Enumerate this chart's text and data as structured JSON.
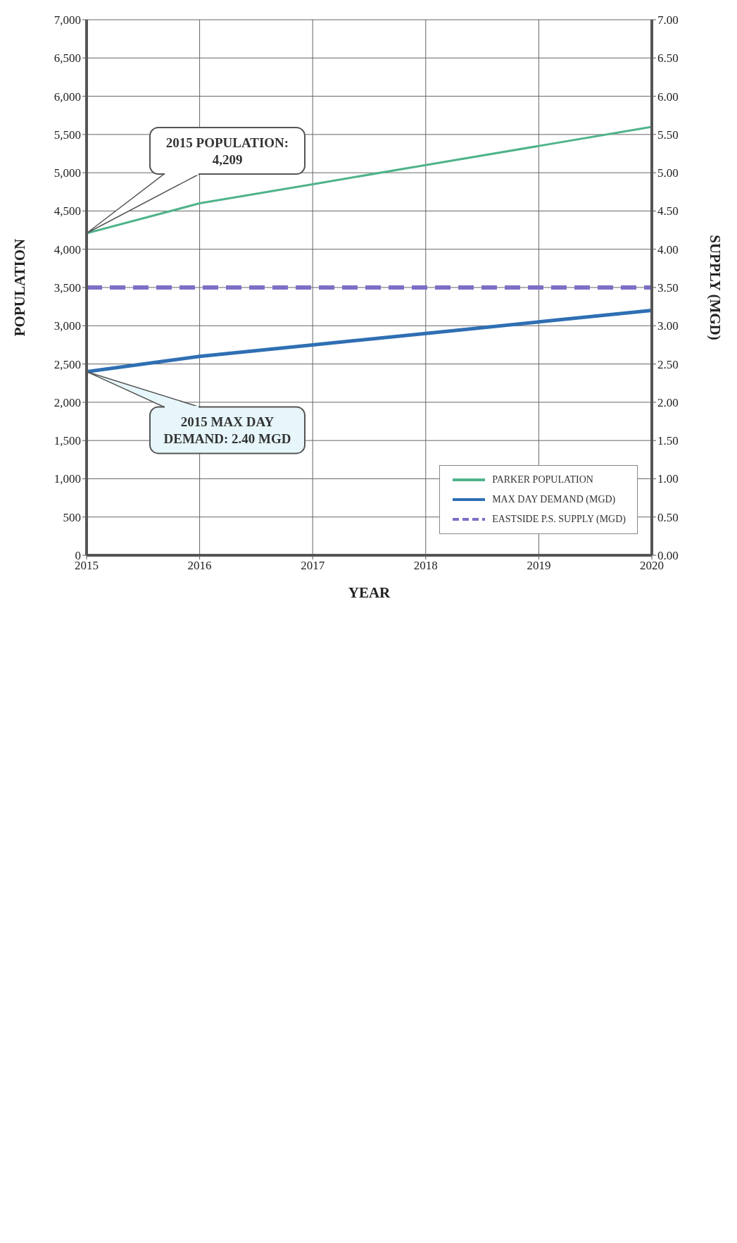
{
  "chart_data": {
    "type": "line",
    "xlabel": "YEAR",
    "ylabel": "POPULATION",
    "y2label": "SUPPLY (MGD)",
    "x": [
      2015,
      2016,
      2017,
      2018,
      2019,
      2020
    ],
    "series": [
      {
        "name": "PARKER POPULATION",
        "color": "#4fb38a",
        "values": [
          4209,
          4600,
          4850,
          5100,
          5350,
          5600
        ]
      },
      {
        "name": "MAX DAY DEMAND (MGD)",
        "color": "#2f6fb3",
        "axis": "y2",
        "values": [
          2.4,
          2.6,
          2.75,
          2.9,
          3.05,
          3.2
        ]
      },
      {
        "name": "EASTSIDE P.S. SUPPLY (MGD)",
        "color": "#7b70c6",
        "axis": "y2",
        "line_style": "dashed",
        "values": [
          3.5,
          3.5,
          3.5,
          3.5,
          3.5,
          3.5
        ]
      }
    ],
    "xlim": [
      2015,
      2020
    ],
    "xticks": [
      2015,
      2016,
      2017,
      2018,
      2019,
      2020
    ],
    "ylim": [
      0,
      7000
    ],
    "yticks": [
      {
        "value": 0,
        "label": "0"
      },
      {
        "value": 500,
        "label": "500"
      },
      {
        "value": 1000,
        "label": "1,000"
      },
      {
        "value": 1500,
        "label": "1,500"
      },
      {
        "value": 2000,
        "label": "2,000"
      },
      {
        "value": 2500,
        "label": "2,500"
      },
      {
        "value": 3000,
        "label": "3,000"
      },
      {
        "value": 3500,
        "label": "3,500"
      },
      {
        "value": 4000,
        "label": "4,000"
      },
      {
        "value": 4500,
        "label": "4,500"
      },
      {
        "value": 5000,
        "label": "5,000"
      },
      {
        "value": 5500,
        "label": "5,500"
      },
      {
        "value": 6000,
        "label": "6,000"
      },
      {
        "value": 6500,
        "label": "6,500"
      },
      {
        "value": 7000,
        "label": "7,000"
      }
    ],
    "y2lim": [
      0,
      7
    ],
    "y2ticks": [
      {
        "value": 0,
        "label": "0.00"
      },
      {
        "value": 0.5,
        "label": "0.50"
      },
      {
        "value": 1,
        "label": "1.00"
      },
      {
        "value": 1.5,
        "label": "1.50"
      },
      {
        "value": 2,
        "label": "2.00"
      },
      {
        "value": 2.5,
        "label": "2.50"
      },
      {
        "value": 3,
        "label": "3.00"
      },
      {
        "value": 3.5,
        "label": "3.50"
      },
      {
        "value": 4,
        "label": "4.00"
      },
      {
        "value": 4.5,
        "label": "4.50"
      },
      {
        "value": 5,
        "label": "5.00"
      },
      {
        "value": 5.5,
        "label": "5.50"
      },
      {
        "value": 6,
        "label": "6.00"
      },
      {
        "value": 6.5,
        "label": "6.50"
      },
      {
        "value": 7,
        "label": "7.00"
      }
    ],
    "annotations": [
      "2015 POPULATION: 4,209",
      "2015 MAX DAY DEMAND: 2.40 MGD"
    ],
    "grid": true,
    "legend": "bottom right",
    "marker": "none"
  }
}
